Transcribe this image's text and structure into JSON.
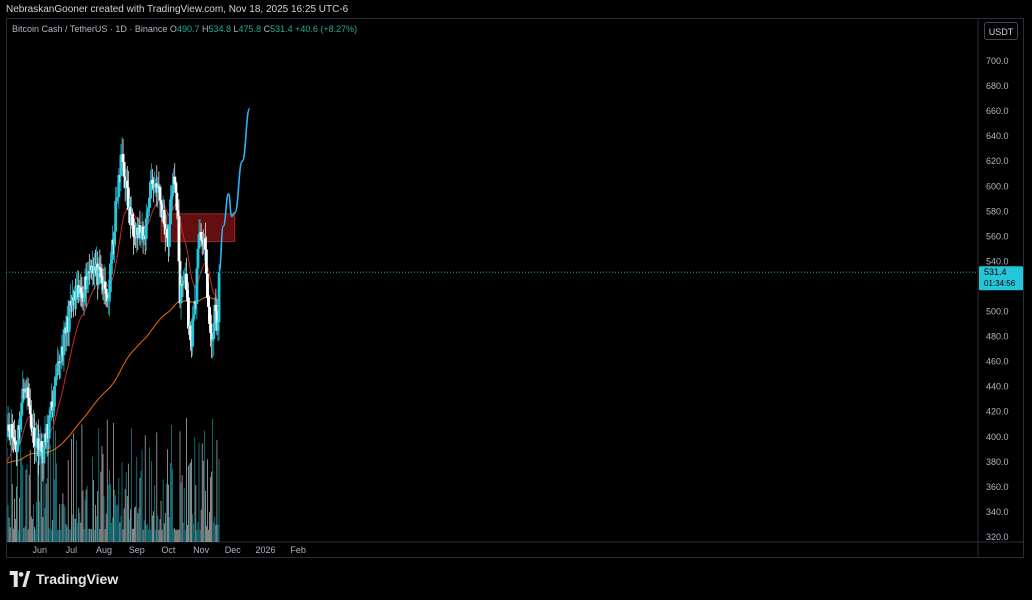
{
  "header": {
    "attribution": "NebraskanGooner created with TradingView.com, Nov 18, 2025 16:25 UTC-6"
  },
  "legend": {
    "symbol": "Bitcoin Cash / TetherUS · 1D · Binance",
    "o_key": "O",
    "o_val": "490.7",
    "h_key": "H",
    "h_val": "534.8",
    "l_key": "L",
    "l_val": "475.8",
    "c_key": "C",
    "c_val": "531.4",
    "change": "+40.6 (+8.27%)"
  },
  "currency_button": "USDT",
  "footer": {
    "brand": "TradingView"
  },
  "colors": {
    "up": "#26c6da",
    "down": "#ffffff",
    "ema_fast": "#c62828",
    "ema_slow": "#ef6c00",
    "projection": "#29b6f6",
    "zone": "#b71c1c",
    "price_line": "#26c6da",
    "background": "#000000"
  },
  "chart_data": {
    "type": "candlestick",
    "y_axis": {
      "ticks": [
        "700.0",
        "680.0",
        "660.0",
        "640.0",
        "620.0",
        "600.0",
        "580.0",
        "560.0",
        "540.0",
        "520.0",
        "500.0",
        "480.0",
        "460.0",
        "440.0",
        "420.0",
        "400.0",
        "380.0",
        "360.0",
        "340.0",
        "320.0"
      ],
      "ylim": [
        316,
        712
      ]
    },
    "x_axis": {
      "ticks": [
        "Jun",
        "Jul",
        "Aug",
        "Sep",
        "Oct",
        "Nov",
        "Dec",
        "2026",
        "Feb"
      ]
    },
    "last_price": {
      "label": "531.4",
      "countdown": "01:34:56",
      "value": 531.4
    },
    "resistance_zone": {
      "from": "2025-09-24",
      "to": "2025-12-03",
      "low": 556,
      "high": 578
    },
    "ema_fast": {
      "length_hint": "short",
      "color": "red"
    },
    "ema_slow": {
      "length_hint": "long",
      "color": "orange"
    },
    "projection": {
      "points": [
        [
          "2025-11-18",
          531
        ],
        [
          "2025-11-22",
          568
        ],
        [
          "2025-11-27",
          594
        ],
        [
          "2025-11-30",
          576
        ],
        [
          "2025-12-03",
          579
        ],
        [
          "2025-12-10",
          620
        ],
        [
          "2025-12-17",
          662
        ]
      ]
    },
    "anchors": [
      [
        "2025-05-01",
        413
      ],
      [
        "2025-05-10",
        392
      ],
      [
        "2025-05-18",
        446
      ],
      [
        "2025-05-26",
        402
      ],
      [
        "2025-06-04",
        386
      ],
      [
        "2025-06-12",
        420
      ],
      [
        "2025-06-22",
        470
      ],
      [
        "2025-07-02",
        508
      ],
      [
        "2025-07-12",
        516
      ],
      [
        "2025-07-20",
        540
      ],
      [
        "2025-07-28",
        525
      ],
      [
        "2025-08-05",
        510
      ],
      [
        "2025-08-12",
        580
      ],
      [
        "2025-08-18",
        626
      ],
      [
        "2025-08-26",
        572
      ],
      [
        "2025-09-02",
        565
      ],
      [
        "2025-09-08",
        556
      ],
      [
        "2025-09-14",
        603
      ],
      [
        "2025-09-20",
        602
      ],
      [
        "2025-09-25",
        580
      ],
      [
        "2025-10-01",
        557
      ],
      [
        "2025-10-05",
        607
      ],
      [
        "2025-10-10",
        580
      ],
      [
        "2025-10-12",
        510
      ],
      [
        "2025-10-17",
        530
      ],
      [
        "2025-10-22",
        472
      ],
      [
        "2025-10-27",
        515
      ],
      [
        "2025-10-31",
        568
      ],
      [
        "2025-11-05",
        545
      ],
      [
        "2025-11-10",
        474
      ],
      [
        "2025-11-14",
        497
      ],
      [
        "2025-11-17",
        490
      ],
      [
        "2025-11-18",
        531
      ]
    ]
  }
}
